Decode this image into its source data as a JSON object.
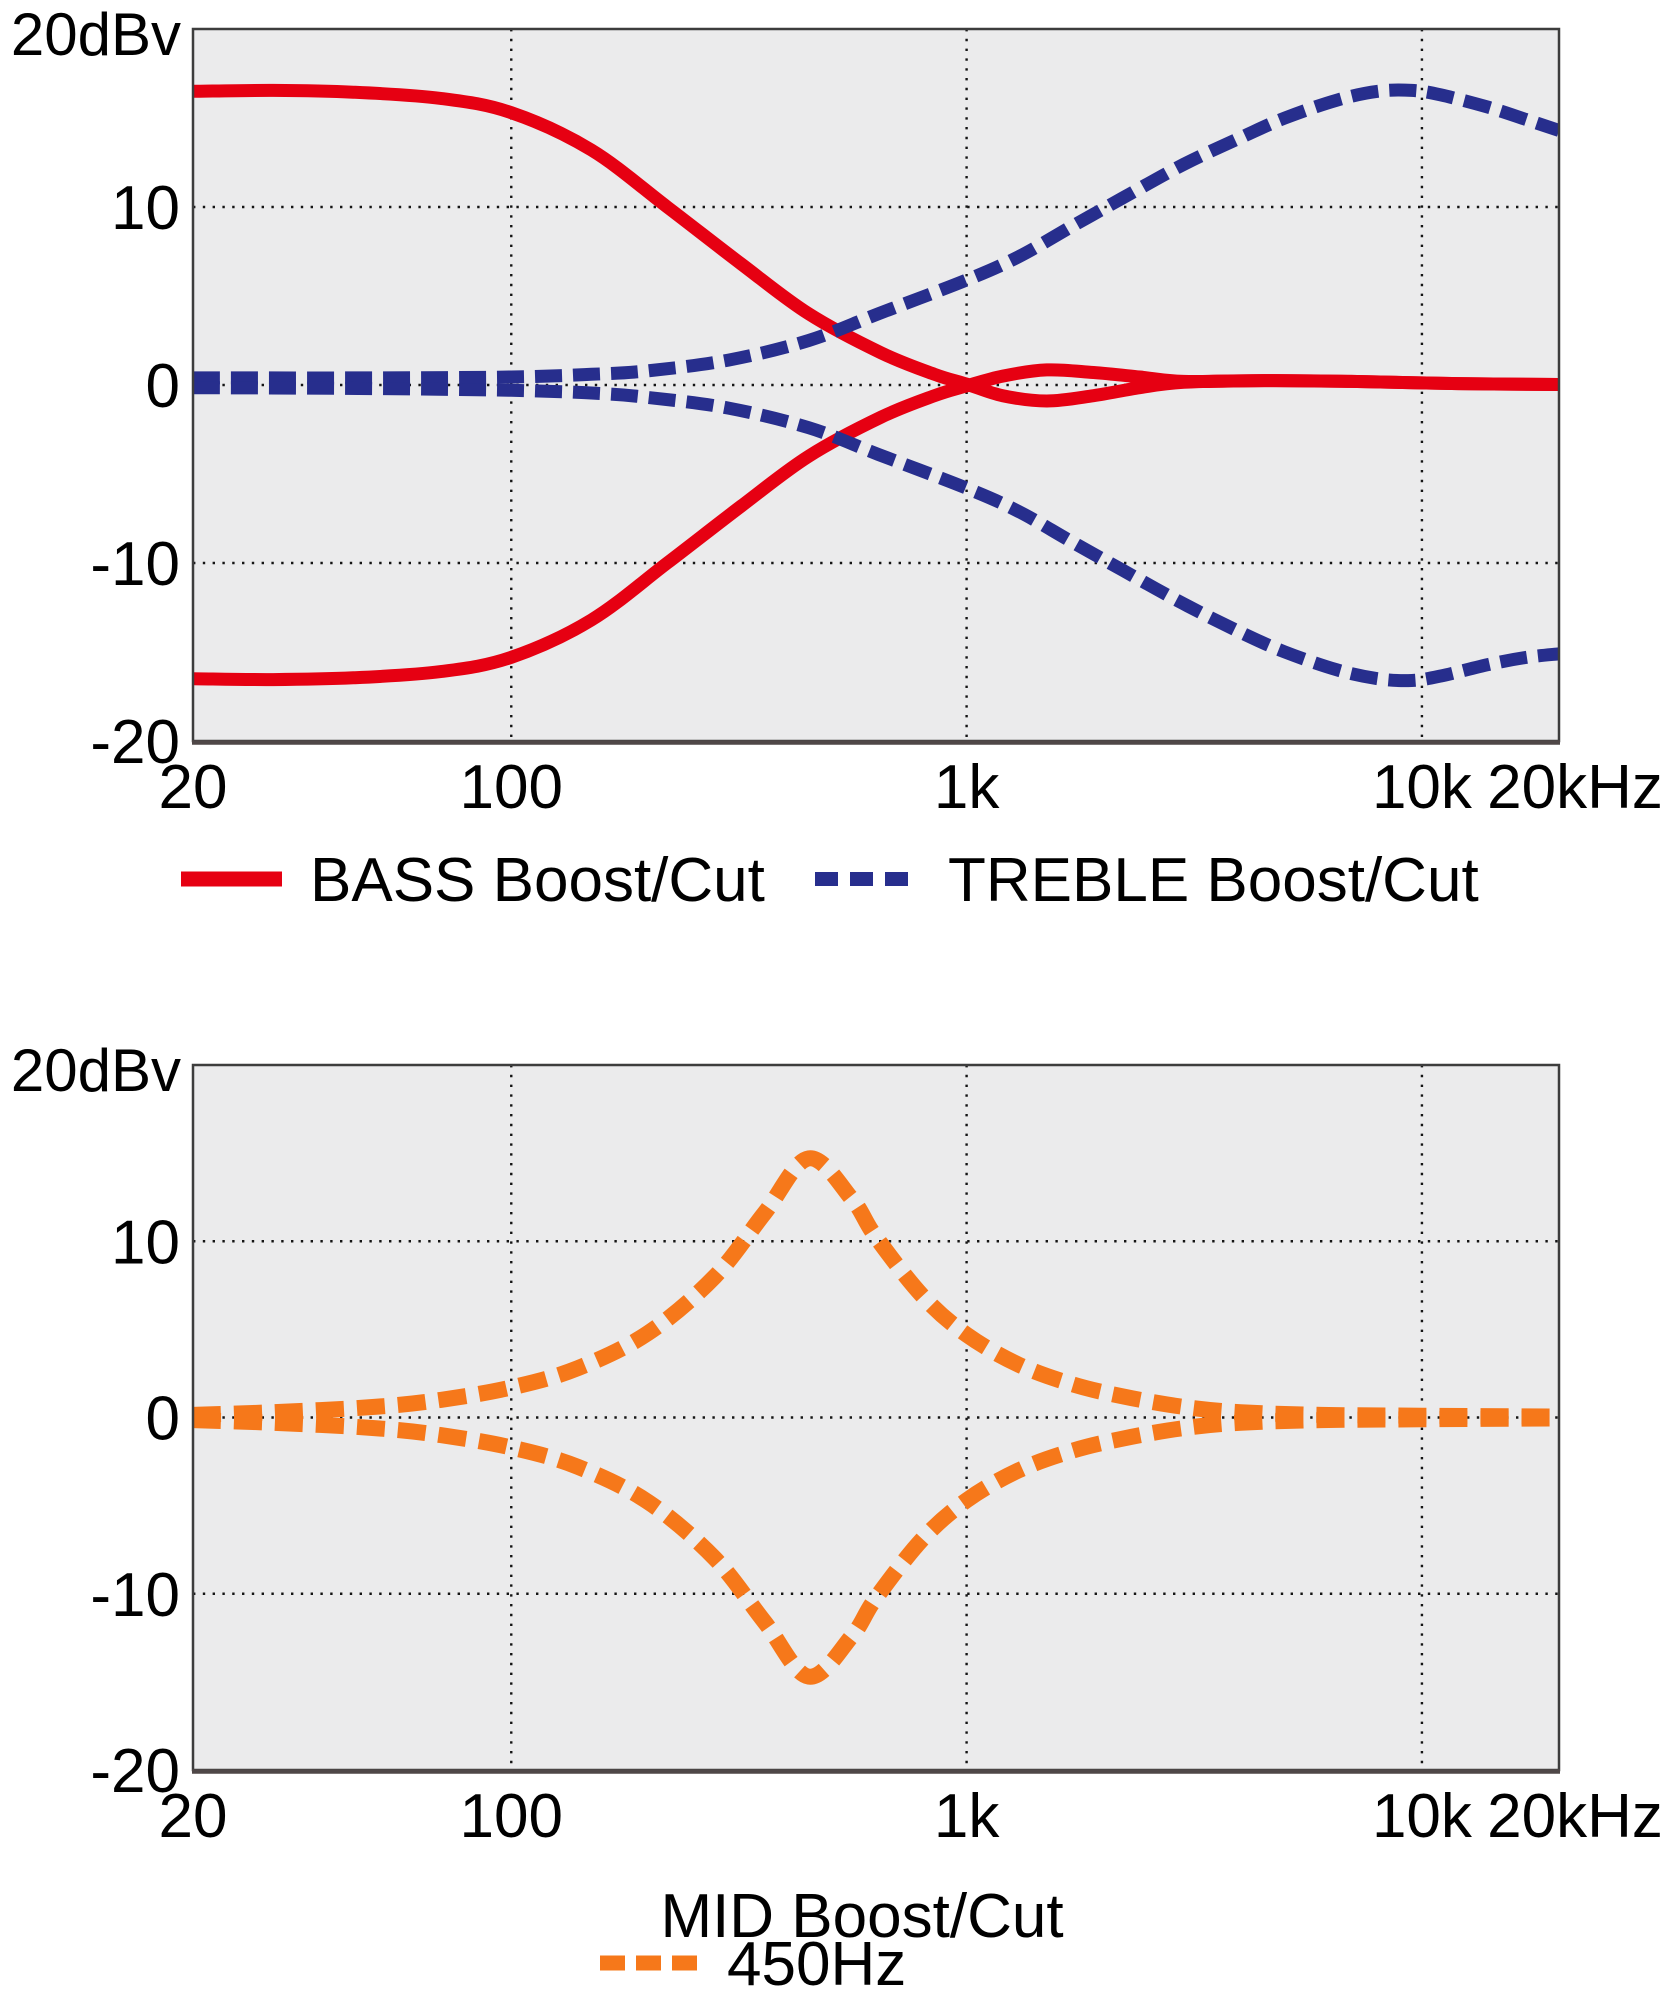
{
  "page": {
    "background": "#ffffff",
    "plot_background": "#ebebec",
    "grid_color": "#141414",
    "border_color": "#3d3d3d"
  },
  "chart_data": [
    {
      "type": "line",
      "title": "",
      "x_scale": "log",
      "x_range_hz": [
        20,
        20000
      ],
      "ylim": [
        -20,
        20
      ],
      "grid": "dotted",
      "legend_position": "below",
      "y_axis_top_label": "20dBv",
      "xlabel": "",
      "x_ticks": [
        {
          "label": "20",
          "f": 20
        },
        {
          "label": "100",
          "f": 100
        },
        {
          "label": "1k",
          "f": 1000
        },
        {
          "label": "10k",
          "f": 10000
        },
        {
          "label": "20kHz",
          "f": 20000
        }
      ],
      "y_ticks": [
        {
          "label": "10",
          "db": 10
        },
        {
          "label": "0",
          "db": 0
        },
        {
          "label": "-10",
          "db": -10
        },
        {
          "label": "-20",
          "db": -20
        }
      ],
      "x_grid_hz": [
        100,
        1000,
        10000
      ],
      "y_grid_db": [
        10,
        0,
        -10
      ],
      "legend": [
        {
          "label": "BASS Boost/Cut",
          "color": "#e60012",
          "style": "solid"
        },
        {
          "label": "TREBLE Boost/Cut",
          "color": "#272e8d",
          "style": "dashed"
        }
      ],
      "series": [
        {
          "name": "BASS Boost",
          "color": "#e60012",
          "style": "solid",
          "points": [
            [
              20,
              16.5
            ],
            [
              30,
              16.55
            ],
            [
              45,
              16.45
            ],
            [
              70,
              16.1
            ],
            [
              100,
              15.3
            ],
            [
              150,
              13.2
            ],
            [
              220,
              10.0
            ],
            [
              320,
              6.8
            ],
            [
              450,
              4.0
            ],
            [
              650,
              1.8
            ],
            [
              850,
              0.6
            ],
            [
              1000,
              0.05
            ],
            [
              1200,
              -0.6
            ],
            [
              1500,
              -0.9
            ],
            [
              1900,
              -0.6
            ],
            [
              2400,
              -0.15
            ],
            [
              3000,
              0.15
            ],
            [
              4500,
              0.25
            ],
            [
              7000,
              0.2
            ],
            [
              12000,
              0.08
            ],
            [
              20000,
              0.03
            ]
          ]
        },
        {
          "name": "BASS Cut",
          "color": "#e60012",
          "style": "solid",
          "points": [
            [
              20,
              -16.5
            ],
            [
              30,
              -16.55
            ],
            [
              45,
              -16.45
            ],
            [
              70,
              -16.1
            ],
            [
              100,
              -15.3
            ],
            [
              150,
              -13.2
            ],
            [
              220,
              -10.0
            ],
            [
              320,
              -6.8
            ],
            [
              450,
              -4.0
            ],
            [
              650,
              -1.8
            ],
            [
              850,
              -0.6
            ],
            [
              1000,
              -0.05
            ],
            [
              1200,
              0.5
            ],
            [
              1500,
              0.85
            ],
            [
              1900,
              0.7
            ],
            [
              2400,
              0.45
            ],
            [
              3000,
              0.2
            ],
            [
              4500,
              0.25
            ],
            [
              7000,
              0.2
            ],
            [
              12000,
              0.08
            ],
            [
              20000,
              0.03
            ]
          ]
        },
        {
          "name": "TREBLE Boost",
          "color": "#272e8d",
          "style": "dashed",
          "points": [
            [
              20,
              0.4
            ],
            [
              50,
              0.4
            ],
            [
              100,
              0.45
            ],
            [
              150,
              0.6
            ],
            [
              200,
              0.8
            ],
            [
              300,
              1.4
            ],
            [
              450,
              2.5
            ],
            [
              640,
              4.0
            ],
            [
              1000,
              5.9
            ],
            [
              1300,
              7.2
            ],
            [
              1700,
              8.9
            ],
            [
              2200,
              10.5
            ],
            [
              3000,
              12.4
            ],
            [
              4000,
              13.9
            ],
            [
              5000,
              15.0
            ],
            [
              6500,
              16.0
            ],
            [
              8000,
              16.5
            ],
            [
              9500,
              16.55
            ],
            [
              11000,
              16.3
            ],
            [
              14000,
              15.6
            ],
            [
              17000,
              14.9
            ],
            [
              20000,
              14.3
            ]
          ]
        },
        {
          "name": "TREBLE Cut",
          "color": "#272e8d",
          "style": "dashed",
          "points": [
            [
              20,
              -0.15
            ],
            [
              50,
              -0.2
            ],
            [
              100,
              -0.3
            ],
            [
              150,
              -0.45
            ],
            [
              200,
              -0.7
            ],
            [
              300,
              -1.3
            ],
            [
              450,
              -2.4
            ],
            [
              640,
              -3.9
            ],
            [
              1000,
              -5.8
            ],
            [
              1300,
              -7.1
            ],
            [
              1700,
              -8.8
            ],
            [
              2200,
              -10.4
            ],
            [
              3000,
              -12.3
            ],
            [
              4000,
              -13.9
            ],
            [
              5000,
              -15.0
            ],
            [
              6500,
              -16.0
            ],
            [
              8000,
              -16.5
            ],
            [
              9500,
              -16.6
            ],
            [
              11000,
              -16.35
            ],
            [
              14000,
              -15.7
            ],
            [
              17000,
              -15.3
            ],
            [
              20000,
              -15.1
            ]
          ]
        }
      ]
    },
    {
      "type": "line",
      "title": "",
      "x_scale": "log",
      "x_range_hz": [
        20,
        20000
      ],
      "ylim": [
        -20,
        20
      ],
      "grid": "dotted",
      "legend_position": "below",
      "y_axis_top_label": "20dBv",
      "xlabel": "MID Boost/Cut",
      "x_ticks": [
        {
          "label": "20",
          "f": 20
        },
        {
          "label": "100",
          "f": 100
        },
        {
          "label": "1k",
          "f": 1000
        },
        {
          "label": "10k",
          "f": 10000
        },
        {
          "label": "20kHz",
          "f": 20000
        }
      ],
      "y_ticks": [
        {
          "label": "10",
          "db": 10
        },
        {
          "label": "0",
          "db": 0
        },
        {
          "label": "-10",
          "db": -10
        },
        {
          "label": "-20",
          "db": -20
        }
      ],
      "x_grid_hz": [
        100,
        1000,
        10000
      ],
      "y_grid_db": [
        10,
        0,
        -10
      ],
      "legend": [
        {
          "label": "450Hz",
          "color": "#f6781a",
          "style": "dashed"
        }
      ],
      "series": [
        {
          "name": "MID Boost",
          "color": "#f6781a",
          "style": "dashed",
          "points": [
            [
              20,
              0.15
            ],
            [
              30,
              0.3
            ],
            [
              50,
              0.6
            ],
            [
              70,
              1.0
            ],
            [
              100,
              1.7
            ],
            [
              140,
              2.8
            ],
            [
              200,
              4.8
            ],
            [
              280,
              8.0
            ],
            [
              360,
              11.6
            ],
            [
              450,
              14.7
            ],
            [
              560,
              12.4
            ],
            [
              630,
              10.3
            ],
            [
              800,
              6.9
            ],
            [
              1000,
              4.7
            ],
            [
              1300,
              3.0
            ],
            [
              1700,
              1.9
            ],
            [
              2200,
              1.2
            ],
            [
              3000,
              0.6
            ],
            [
              4000,
              0.3
            ],
            [
              6000,
              0.15
            ],
            [
              10000,
              0.1
            ],
            [
              20000,
              0.05
            ]
          ]
        },
        {
          "name": "MID Cut",
          "color": "#f6781a",
          "style": "dashed",
          "points": [
            [
              20,
              -0.15
            ],
            [
              30,
              -0.3
            ],
            [
              50,
              -0.6
            ],
            [
              70,
              -1.0
            ],
            [
              100,
              -1.7
            ],
            [
              140,
              -2.8
            ],
            [
              200,
              -4.8
            ],
            [
              280,
              -8.0
            ],
            [
              360,
              -11.6
            ],
            [
              450,
              -14.7
            ],
            [
              560,
              -12.4
            ],
            [
              630,
              -10.3
            ],
            [
              800,
              -6.9
            ],
            [
              1000,
              -4.7
            ],
            [
              1300,
              -3.0
            ],
            [
              1700,
              -1.9
            ],
            [
              2200,
              -1.2
            ],
            [
              3000,
              -0.6
            ],
            [
              4000,
              -0.3
            ],
            [
              6000,
              -0.15
            ],
            [
              10000,
              -0.1
            ],
            [
              20000,
              -0.05
            ]
          ]
        }
      ]
    }
  ]
}
